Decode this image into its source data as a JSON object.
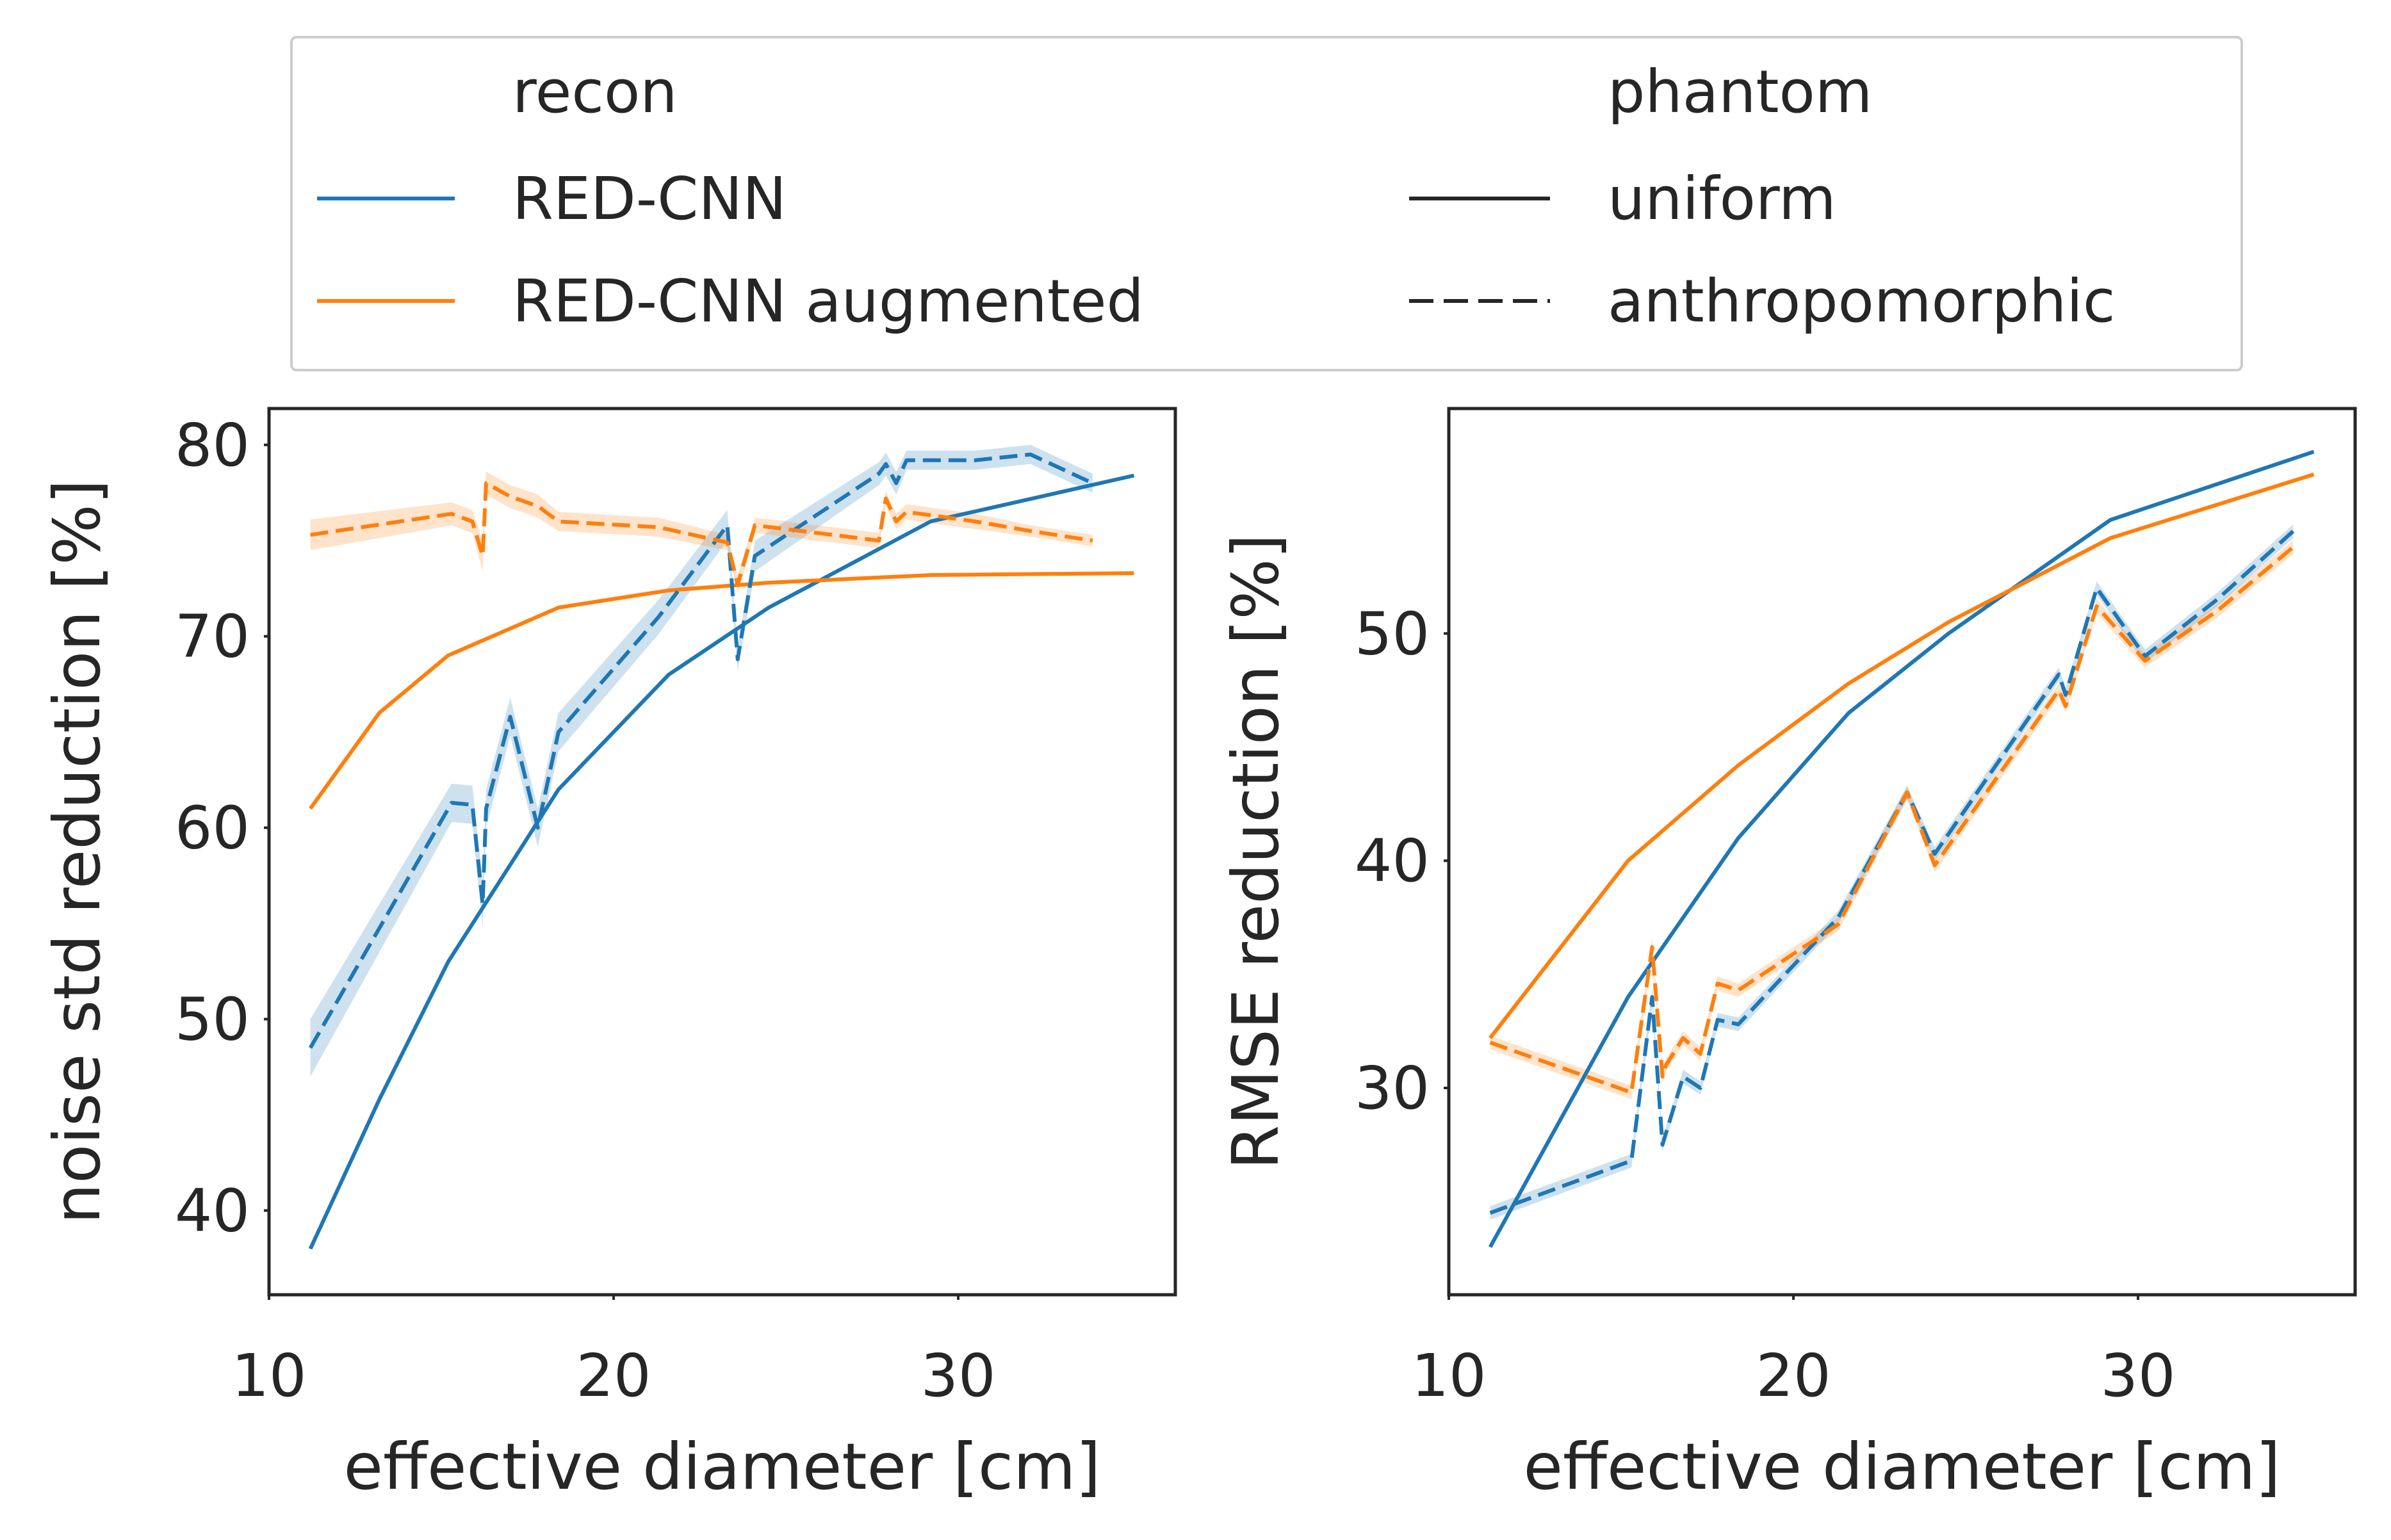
{
  "legend": {
    "hue_title": "recon",
    "style_title": "phantom",
    "entries_hue": [
      {
        "label": "RED-CNN",
        "color": "#1f77b4"
      },
      {
        "label": "RED-CNN augmented",
        "color": "#ff7f0e"
      }
    ],
    "entries_style": [
      {
        "label": "uniform",
        "dash": "solid"
      },
      {
        "label": "anthropomorphic",
        "dash": "dashed"
      }
    ],
    "placement": "top-center"
  },
  "colors": {
    "red_cnn": "#1f77b4",
    "red_cnn_augmented": "#ff7f0e",
    "axes": "#262626"
  },
  "chart_data": [
    {
      "type": "line",
      "xlabel": "effective diameter [cm]",
      "ylabel": "noise std reduction [%]",
      "xlim": [
        10,
        36.3
      ],
      "ylim": [
        35.6,
        81.9
      ],
      "xticks": [
        10,
        20,
        30
      ],
      "yticks": [
        40,
        50,
        60,
        70,
        80
      ],
      "grid": false,
      "series": [
        {
          "name": "RED-CNN",
          "phantom": "uniform",
          "color": "#1f77b4",
          "dash": "solid",
          "x": [
            11.2,
            13.2,
            15.2,
            18.4,
            21.6,
            24.5,
            29.2,
            35.1
          ],
          "y": [
            38.0,
            45.8,
            53.0,
            62.0,
            68.0,
            71.5,
            76.0,
            78.4
          ]
        },
        {
          "name": "RED-CNN augmented",
          "phantom": "uniform",
          "color": "#ff7f0e",
          "dash": "solid",
          "x": [
            11.2,
            13.2,
            15.2,
            18.4,
            21.6,
            24.5,
            29.2,
            35.1
          ],
          "y": [
            61.0,
            66.0,
            69.0,
            71.5,
            72.4,
            72.8,
            73.2,
            73.3
          ]
        },
        {
          "name": "RED-CNN",
          "phantom": "anthropomorphic",
          "color": "#1f77b4",
          "dash": "dashed",
          "x": [
            11.2,
            15.3,
            15.9,
            16.2,
            16.3,
            17.0,
            17.8,
            18.4,
            21.3,
            23.3,
            23.6,
            24.1,
            27.7,
            27.9,
            28.2,
            28.5,
            30.5,
            32.1,
            33.9
          ],
          "y": [
            48.5,
            61.3,
            61.2,
            56.0,
            61.0,
            65.8,
            60.0,
            65.0,
            71.0,
            75.8,
            68.8,
            74.2,
            78.5,
            79.0,
            78.0,
            79.2,
            79.2,
            79.5,
            78.0
          ],
          "band": [
            1.5,
            1.0,
            1.0,
            1.2,
            1.0,
            1.0,
            1.0,
            1.0,
            0.9,
            0.8,
            0.6,
            0.8,
            0.6,
            0.6,
            0.6,
            0.5,
            0.5,
            0.5,
            0.5
          ]
        },
        {
          "name": "RED-CNN augmented",
          "phantom": "anthropomorphic",
          "color": "#ff7f0e",
          "dash": "dashed",
          "x": [
            11.2,
            15.3,
            15.9,
            16.2,
            16.3,
            17.0,
            17.8,
            18.4,
            21.3,
            23.3,
            23.6,
            24.1,
            27.7,
            27.9,
            28.2,
            28.5,
            30.5,
            32.1,
            33.9
          ],
          "y": [
            75.3,
            76.4,
            76.0,
            74.2,
            78.0,
            77.3,
            76.8,
            76.0,
            75.7,
            74.9,
            72.7,
            75.8,
            75.0,
            77.2,
            76.0,
            76.5,
            76.0,
            75.5,
            75.0
          ],
          "band": [
            0.8,
            0.6,
            0.6,
            0.8,
            0.6,
            0.6,
            0.6,
            0.5,
            0.5,
            0.4,
            0.5,
            0.4,
            0.4,
            0.4,
            0.4,
            0.4,
            0.4,
            0.3,
            0.3
          ]
        }
      ]
    },
    {
      "type": "line",
      "xlabel": "effective diameter [cm]",
      "ylabel": "RMSE reduction [%]",
      "xlim": [
        10,
        36.3
      ],
      "ylim": [
        20.9,
        59.9
      ],
      "xticks": [
        10,
        20,
        30
      ],
      "yticks": [
        30,
        40,
        50
      ],
      "grid": false,
      "series": [
        {
          "name": "RED-CNN",
          "phantom": "uniform",
          "color": "#1f77b4",
          "dash": "solid",
          "x": [
            11.2,
            15.2,
            18.4,
            21.6,
            24.5,
            29.2,
            35.1
          ],
          "y": [
            23.0,
            34.0,
            41.0,
            46.5,
            50.0,
            55.0,
            58.0
          ]
        },
        {
          "name": "RED-CNN augmented",
          "phantom": "uniform",
          "color": "#ff7f0e",
          "dash": "solid",
          "x": [
            11.2,
            15.2,
            18.4,
            21.6,
            24.5,
            29.2,
            35.1
          ],
          "y": [
            32.2,
            40.0,
            44.2,
            47.8,
            50.5,
            54.2,
            57.0
          ]
        },
        {
          "name": "RED-CNN",
          "phantom": "anthropomorphic",
          "color": "#1f77b4",
          "dash": "dashed",
          "x": [
            11.2,
            15.3,
            15.9,
            16.2,
            16.3,
            16.8,
            17.3,
            17.8,
            18.4,
            21.3,
            23.3,
            24.1,
            27.7,
            27.9,
            28.8,
            30.2,
            32.3,
            34.5
          ],
          "y": [
            24.5,
            26.8,
            34.0,
            27.5,
            28.0,
            30.5,
            30.0,
            33.0,
            32.8,
            37.5,
            43.0,
            40.3,
            48.2,
            47.3,
            52.0,
            49.0,
            51.5,
            54.5
          ],
          "band": [
            0.3,
            0.3,
            0.4,
            0.3,
            0.3,
            0.3,
            0.3,
            0.3,
            0.3,
            0.3,
            0.3,
            0.3,
            0.3,
            0.3,
            0.3,
            0.3,
            0.3,
            0.3
          ]
        },
        {
          "name": "RED-CNN augmented",
          "phantom": "anthropomorphic",
          "color": "#ff7f0e",
          "dash": "dashed",
          "x": [
            11.2,
            15.3,
            15.9,
            16.2,
            16.3,
            16.8,
            17.3,
            17.8,
            18.4,
            21.3,
            23.3,
            24.1,
            27.7,
            27.9,
            28.8,
            30.2,
            32.3,
            34.5
          ],
          "y": [
            32.0,
            29.8,
            36.2,
            30.5,
            31.0,
            32.2,
            31.5,
            34.6,
            34.3,
            37.2,
            43.0,
            39.8,
            47.5,
            46.8,
            51.2,
            48.8,
            51.0,
            53.8
          ],
          "band": [
            0.3,
            0.3,
            0.4,
            0.3,
            0.3,
            0.3,
            0.3,
            0.3,
            0.3,
            0.3,
            0.3,
            0.3,
            0.3,
            0.3,
            0.3,
            0.3,
            0.3,
            0.3
          ]
        }
      ]
    }
  ]
}
